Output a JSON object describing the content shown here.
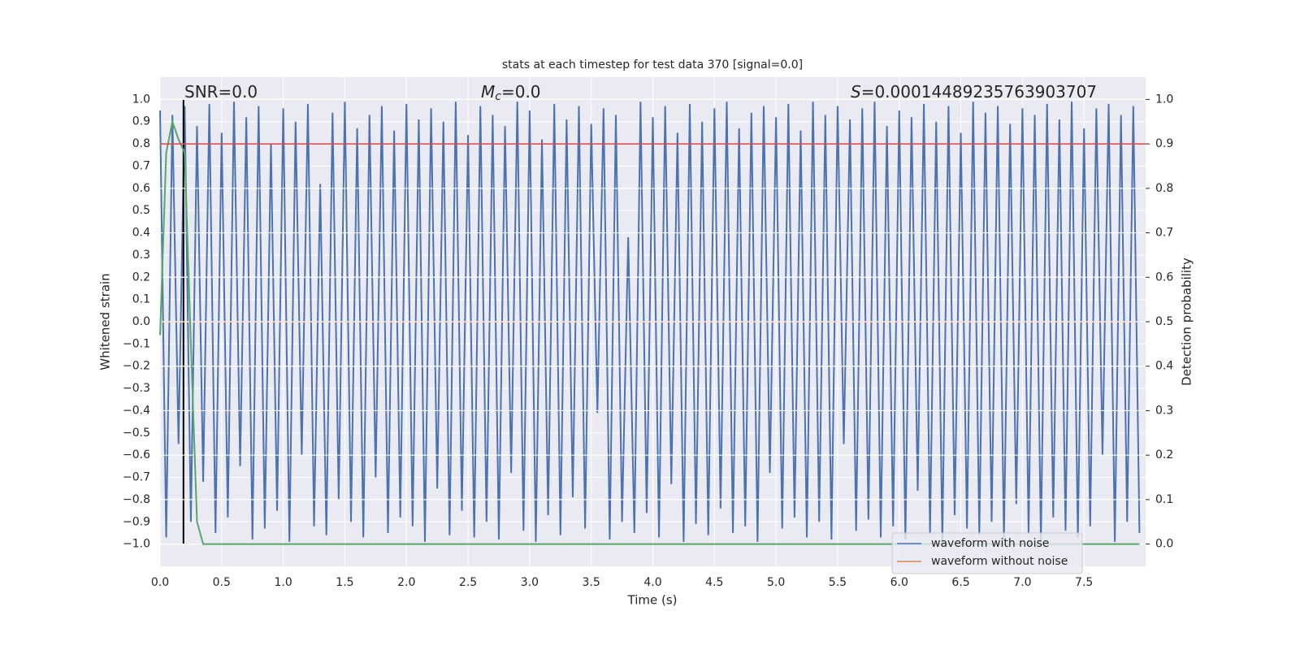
{
  "chart_data": {
    "type": "line",
    "title": "stats at each timestep for test data 370 [signal=0.0]",
    "xlabel": "Time (s)",
    "ylabel": "Whitened strain",
    "y2label": "Detection probability",
    "xlim": [
      0,
      8
    ],
    "ylim": [
      -1.1,
      1.1
    ],
    "y2lim": [
      -0.05,
      1.05
    ],
    "xticks": [
      {
        "value": 0,
        "label": "0.0"
      },
      0.5,
      {
        "value": 1,
        "label": "1.0"
      },
      1.5,
      {
        "value": 2,
        "label": "2.0"
      },
      2.5,
      {
        "value": 3,
        "label": "3.0"
      },
      3.5,
      {
        "value": 4,
        "label": "4.0"
      },
      4.5,
      {
        "value": 5,
        "label": "5.0"
      },
      5.5,
      {
        "value": 6,
        "label": "6.0"
      },
      6.5,
      {
        "value": 7,
        "label": "7.0"
      },
      7.5
    ],
    "yticks": [
      {
        "value": 1,
        "label": "1.0"
      },
      0.9,
      0.8,
      0.7,
      0.6,
      0.5,
      0.4,
      0.3,
      0.2,
      0.1,
      {
        "value": 0,
        "label": "0.0"
      },
      {
        "value": -0.1,
        "label": "−0.1"
      },
      {
        "value": -0.2,
        "label": "−0.2"
      },
      {
        "value": -0.3,
        "label": "−0.3"
      },
      {
        "value": -0.4,
        "label": "−0.4"
      },
      {
        "value": -0.5,
        "label": "−0.5"
      },
      {
        "value": -0.6,
        "label": "−0.6"
      },
      {
        "value": -0.7,
        "label": "−0.7"
      },
      {
        "value": -0.8,
        "label": "−0.8"
      },
      {
        "value": -0.9,
        "label": "−0.9"
      },
      {
        "value": -1,
        "label": "−1.0"
      }
    ],
    "y2ticks": [
      {
        "value": 0,
        "label": "0.0"
      },
      0.1,
      0.2,
      0.3,
      0.4,
      0.5,
      0.6,
      0.7,
      0.8,
      0.9,
      {
        "value": 1,
        "label": "1.0"
      }
    ],
    "grid": true,
    "legend": "lower right",
    "annotations": [
      {
        "text": "SNR=0.0"
      },
      {
        "symbol": "M",
        "subscript": "c",
        "text": "=0.0"
      },
      {
        "symbol": "S",
        "text": "=0.00014489235763903707"
      }
    ],
    "series": [
      {
        "name": "waveform with noise",
        "color": "#4c72b0",
        "x": [
          0,
          0.05,
          0.1,
          0.15,
          0.2,
          0.25,
          0.3,
          0.35,
          0.4,
          0.45,
          0.5,
          0.55,
          0.6,
          0.65,
          0.7,
          0.75,
          0.8,
          0.85,
          0.9,
          0.95,
          1,
          1.05,
          1.1,
          1.15,
          1.2,
          1.25,
          1.3,
          1.35,
          1.4,
          1.45,
          1.5,
          1.55,
          1.6,
          1.65,
          1.7,
          1.75,
          1.8,
          1.85,
          1.9,
          1.95,
          2,
          2.05,
          2.1,
          2.15,
          2.2,
          2.25,
          2.3,
          2.35,
          2.4,
          2.45,
          2.5,
          2.55,
          2.6,
          2.65,
          2.7,
          2.75,
          2.8,
          2.85,
          2.9,
          2.95,
          3,
          3.05,
          3.1,
          3.15,
          3.2,
          3.25,
          3.3,
          3.35,
          3.4,
          3.45,
          3.5,
          3.55,
          3.6,
          3.65,
          3.7,
          3.75,
          3.8,
          3.85,
          3.9,
          3.95,
          4,
          4.05,
          4.1,
          4.15,
          4.2,
          4.25,
          4.3,
          4.35,
          4.4,
          4.45,
          4.5,
          4.55,
          4.6,
          4.65,
          4.7,
          4.75,
          4.8,
          4.85,
          4.9,
          4.95,
          5,
          5.05,
          5.1,
          5.15,
          5.2,
          5.25,
          5.3,
          5.35,
          5.4,
          5.45,
          5.5,
          5.55,
          5.6,
          5.65,
          5.7,
          5.75,
          5.8,
          5.85,
          5.9,
          5.95,
          6,
          6.05,
          6.1,
          6.15,
          6.2,
          6.25,
          6.3,
          6.35,
          6.4,
          6.45,
          6.5,
          6.55,
          6.6,
          6.65,
          6.7,
          6.75,
          6.8,
          6.85,
          6.9,
          6.95,
          7,
          7.05,
          7.1,
          7.15,
          7.2,
          7.25,
          7.3,
          7.35,
          7.4,
          7.45,
          7.5,
          7.55,
          7.6,
          7.65,
          7.7,
          7.75,
          7.8,
          7.85,
          7.9,
          7.95
        ],
        "values": [
          0.95,
          -0.97,
          0.93,
          -0.55,
          0.97,
          -0.9,
          0.88,
          -0.72,
          0.98,
          -0.95,
          0.85,
          -0.88,
          0.99,
          -0.65,
          0.92,
          -0.98,
          0.97,
          -0.93,
          0.8,
          -0.85,
          0.96,
          -0.99,
          0.9,
          -0.6,
          0.98,
          -0.92,
          0.62,
          -0.96,
          0.94,
          -0.8,
          0.99,
          -0.9,
          0.87,
          -0.97,
          0.93,
          -0.7,
          0.97,
          -0.95,
          0.86,
          -0.88,
          0.98,
          -0.92,
          0.91,
          -0.99,
          0.96,
          -0.75,
          0.9,
          -0.96,
          0.99,
          -0.85,
          0.84,
          -0.97,
          0.97,
          -0.9,
          0.93,
          -0.98,
          0.88,
          -0.68,
          0.99,
          -0.94,
          0.95,
          -0.99,
          0.82,
          -0.87,
          0.98,
          -0.96,
          0.91,
          -0.79,
          0.97,
          -0.93,
          0.89,
          -0.41,
          0.96,
          -0.98,
          0.93,
          -0.9,
          0.38,
          -0.95,
          0.99,
          -0.86,
          0.92,
          -0.97,
          0.97,
          -0.73,
          0.85,
          -0.99,
          0.98,
          -0.91,
          0.9,
          -0.96,
          0.96,
          -0.84,
          0.99,
          -0.95,
          0.87,
          -0.92,
          0.94,
          -0.99,
          0.97,
          -0.68,
          0.92,
          -0.93,
          0.98,
          -0.88,
          0.86,
          -0.97,
          0.99,
          -0.9,
          0.93,
          -0.98,
          0.97,
          -0.55,
          0.91,
          -0.94,
          0.96,
          -0.89,
          0.99,
          -0.97,
          0.88,
          -0.92,
          0.95,
          -0.98,
          0.92,
          -0.76,
          0.98,
          -0.95,
          0.9,
          -0.99,
          0.97,
          -0.87,
          0.85,
          -0.93,
          0.99,
          -0.96,
          0.94,
          -0.9,
          0.97,
          -0.98,
          0.89,
          -0.82,
          0.96,
          -0.95,
          0.93,
          -0.99,
          0.98,
          -0.88,
          0.91,
          -0.94,
          0.99,
          -0.97,
          0.87,
          -0.92,
          0.96,
          -0.6,
          0.98,
          -0.99,
          0.93,
          -0.9,
          0.97,
          -0.95
        ]
      },
      {
        "name": "waveform without noise",
        "color": "#dd8452",
        "x": [
          0,
          7.95
        ],
        "values": [
          0,
          0
        ]
      }
    ],
    "detection_probability": {
      "color": "#55a868",
      "axis": "y2",
      "x": [
        0,
        0.05,
        0.1,
        0.15,
        0.2,
        0.25,
        0.3,
        0.35,
        0.4,
        7.95
      ],
      "values": [
        0.47,
        0.88,
        0.95,
        0.91,
        0.88,
        0.45,
        0.05,
        0,
        0,
        0
      ]
    },
    "threshold": {
      "value": 0.9,
      "axis": "y2",
      "color": "#c44e52"
    },
    "vline": {
      "x": 0.19,
      "color": "#000000"
    }
  }
}
